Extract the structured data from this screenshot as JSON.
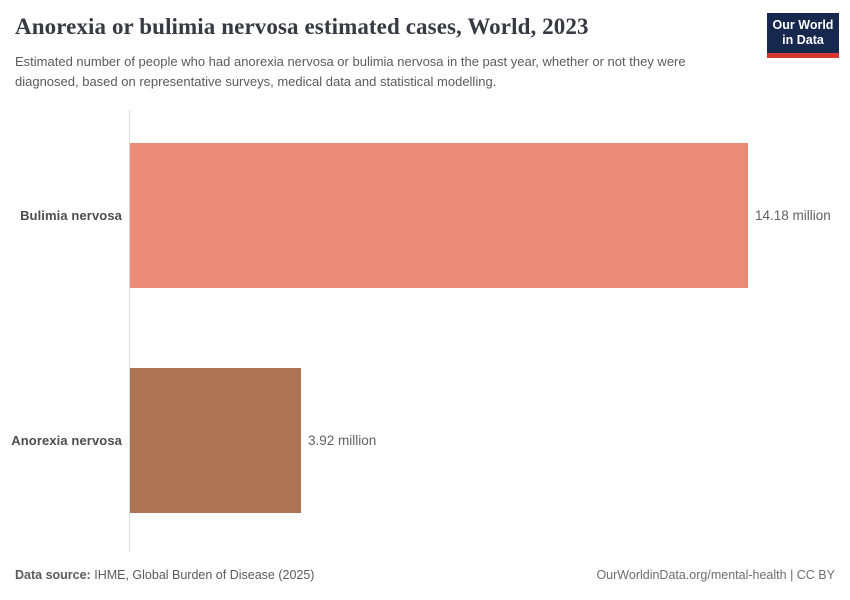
{
  "header": {
    "title": "Anorexia or bulimia nervosa estimated cases, World, 2023",
    "subtitle": "Estimated number of people who had anorexia nervosa or bulimia nervosa in the past year, whether or not they were diagnosed, based on representative surveys, medical data and statistical modelling.",
    "logo": {
      "line1": "Our World",
      "line2": "in Data"
    }
  },
  "chart_data": {
    "type": "bar",
    "orientation": "horizontal",
    "title": "Anorexia or bulimia nervosa estimated cases, World, 2023",
    "categories": [
      "Bulimia nervosa",
      "Anorexia nervosa"
    ],
    "values": [
      14.18,
      3.92
    ],
    "unit": "million people",
    "value_labels": [
      "14.18 million",
      "3.92 million"
    ],
    "bar_colors": [
      "#ea8a77",
      "#ad7454"
    ],
    "xlim": [
      0,
      14.18
    ],
    "grid": false,
    "legend": "none",
    "value_labels_position": "outside-end"
  },
  "footer": {
    "source_label": "Data source:",
    "source_text": "IHME, Global Burden of Disease (2025)",
    "right_text": "OurWorldinData.org/mental-health | CC BY"
  },
  "colors": {
    "logo_bg": "#16284e",
    "logo_stripe": "#d43830",
    "axis_line": "#dddddd",
    "title_text": "#363b43",
    "subtitle_text": "#5b5b5b"
  }
}
